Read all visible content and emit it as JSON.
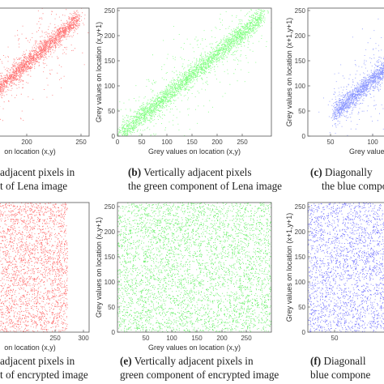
{
  "chart_data": [
    {
      "id": "a",
      "type": "scatter",
      "color": "#ff2b2b",
      "caption_letter": "",
      "caption_lines": [
        "adjacent pixels in",
        "t of Lena image"
      ],
      "xlabel": "on location (x,y)",
      "ylabel": "",
      "xticks": [
        "200",
        "250"
      ],
      "yticks": [],
      "xlim": [
        0,
        260
      ],
      "ylim": [
        0,
        260
      ],
      "pattern": "correlated",
      "x_center_range": [
        20,
        240
      ],
      "spread": 18
    },
    {
      "id": "b",
      "type": "scatter",
      "color": "#3cff3c",
      "caption_letter": "(b)",
      "caption_lines": [
        "Vertically adjacent pixels",
        "the green component of Lena image"
      ],
      "xlabel": "Grey values on location (x,y)",
      "ylabel": "Grey values on location (x,y+1)",
      "xticks": [
        "0",
        "50",
        "100",
        "150",
        "200",
        "250"
      ],
      "yticks": [
        "0",
        "50",
        "100",
        "150",
        "200",
        "250"
      ],
      "xlim": [
        0,
        250
      ],
      "ylim": [
        0,
        250
      ],
      "pattern": "correlated",
      "x_center_range": [
        5,
        235
      ],
      "spread": 18
    },
    {
      "id": "c",
      "type": "scatter",
      "color": "#4a5cff",
      "caption_letter": "(c)",
      "caption_lines": [
        "Diagonally",
        "the blue compo"
      ],
      "xlabel": "Grey values",
      "ylabel": "Grey values on location (x+1,y+1)",
      "xticks": [
        "50",
        "100"
      ],
      "yticks": [
        "0",
        "50",
        "100",
        "150",
        "200",
        "250"
      ],
      "xlim": [
        0,
        250
      ],
      "ylim": [
        0,
        250
      ],
      "pattern": "correlated",
      "x_center_range": [
        45,
        235
      ],
      "spread": 18
    },
    {
      "id": "d",
      "type": "scatter",
      "color": "#ff3030",
      "caption_letter": "",
      "caption_lines": [
        "adjacent pixels in",
        "t of encrypted image"
      ],
      "xlabel": "on location (x,y)",
      "ylabel": "",
      "xticks": [
        "250",
        "300"
      ],
      "yticks": [],
      "xlim": [
        0,
        300
      ],
      "ylim": [
        0,
        255
      ],
      "pattern": "uniform"
    },
    {
      "id": "e",
      "type": "scatter",
      "color": "#29e829",
      "caption_letter": "(e)",
      "caption_lines": [
        "Vertically adjacent pixels in",
        "green component of encrypted image"
      ],
      "xlabel": "Grey values on location (x,y)",
      "ylabel": "Grey values on location (x,y+1)",
      "xticks": [
        "50",
        "100",
        "150",
        "200",
        "250"
      ],
      "yticks": [
        "0",
        "50",
        "100",
        "150",
        "200",
        "250"
      ],
      "xlim": [
        0,
        255
      ],
      "ylim": [
        0,
        255
      ],
      "pattern": "uniform"
    },
    {
      "id": "f",
      "type": "scatter",
      "color": "#3a3aff",
      "caption_letter": "(f)",
      "caption_lines": [
        "Diagonall",
        "blue compone"
      ],
      "xlabel": "",
      "ylabel": "Grey values on location (x+1,y+1)",
      "xticks": [
        "50"
      ],
      "yticks": [
        "0",
        "50",
        "100",
        "150",
        "200",
        "250"
      ],
      "xlim": [
        0,
        255
      ],
      "ylim": [
        0,
        255
      ],
      "pattern": "uniform"
    }
  ]
}
